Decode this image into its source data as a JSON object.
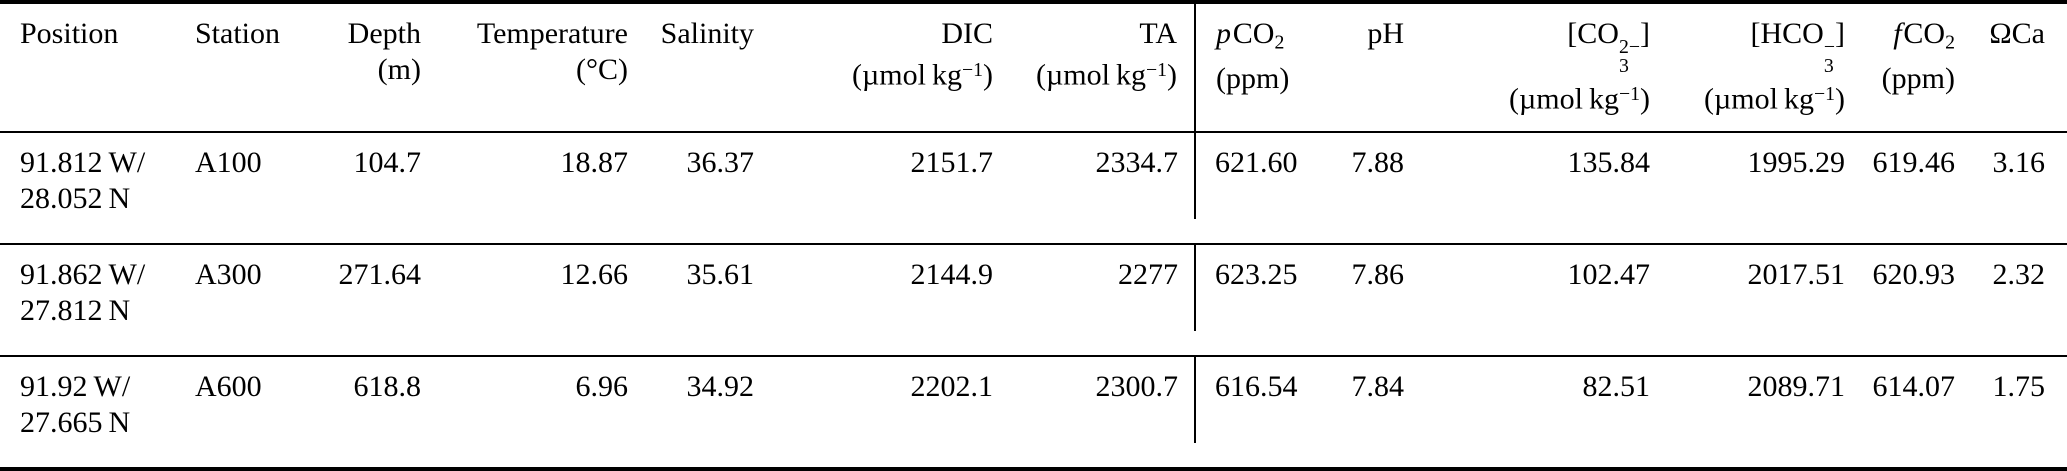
{
  "colors": {
    "background": "#ffffff",
    "text": "#000000",
    "rule": "#000000"
  },
  "table": {
    "columns": [
      {
        "id": "position",
        "header_line1": [
          {
            "t": "t",
            "v": "Position"
          }
        ],
        "header_line2": []
      },
      {
        "id": "station",
        "header_line1": [
          {
            "t": "t",
            "v": "Station"
          }
        ],
        "header_line2": []
      },
      {
        "id": "depth",
        "header_line1": [
          {
            "t": "t",
            "v": "Depth"
          }
        ],
        "header_line2": [
          {
            "t": "t",
            "v": "(m)"
          }
        ]
      },
      {
        "id": "temperature",
        "header_line1": [
          {
            "t": "t",
            "v": "Temperature"
          }
        ],
        "header_line2": [
          {
            "t": "t",
            "v": "(°C)"
          }
        ]
      },
      {
        "id": "salinity",
        "header_line1": [
          {
            "t": "t",
            "v": "Salinity"
          }
        ],
        "header_line2": []
      },
      {
        "id": "dic",
        "header_line1": [
          {
            "t": "t",
            "v": "DIC"
          }
        ],
        "header_line2": [
          {
            "t": "t",
            "v": "(µmol kg"
          },
          {
            "t": "sup",
            "v": "−1"
          },
          {
            "t": "t",
            "v": ")"
          }
        ]
      },
      {
        "id": "ta",
        "header_line1": [
          {
            "t": "t",
            "v": "TA"
          }
        ],
        "header_line2": [
          {
            "t": "t",
            "v": "(µmol kg"
          },
          {
            "t": "sup",
            "v": "−1"
          },
          {
            "t": "t",
            "v": ")"
          }
        ]
      },
      {
        "id": "pco2",
        "header_line1": [
          {
            "t": "i",
            "v": "p"
          },
          {
            "t": "t",
            "v": "CO"
          },
          {
            "t": "sub",
            "v": "2"
          }
        ],
        "header_line2": [
          {
            "t": "t",
            "v": "(ppm)"
          }
        ],
        "vline_before": true
      },
      {
        "id": "ph",
        "header_line1": [
          {
            "t": "t",
            "v": "pH"
          }
        ],
        "header_line2": []
      },
      {
        "id": "co3",
        "header_line1": [
          {
            "t": "t",
            "v": "[CO"
          },
          {
            "t": "ss",
            "sup": "2−",
            "sub": "3"
          },
          {
            "t": "t",
            "v": "]"
          }
        ],
        "header_line2": [
          {
            "t": "t",
            "v": "(µmol kg"
          },
          {
            "t": "sup",
            "v": "−1"
          },
          {
            "t": "t",
            "v": ")"
          }
        ]
      },
      {
        "id": "hco3",
        "header_line1": [
          {
            "t": "t",
            "v": "[HCO"
          },
          {
            "t": "ss",
            "sup": "−",
            "sub": "3"
          },
          {
            "t": "t",
            "v": "]"
          }
        ],
        "header_line2": [
          {
            "t": "t",
            "v": "(µmol kg"
          },
          {
            "t": "sup",
            "v": "−1"
          },
          {
            "t": "t",
            "v": ")"
          }
        ]
      },
      {
        "id": "fco2",
        "header_line1": [
          {
            "t": "i",
            "v": "f"
          },
          {
            "t": "t",
            "v": "CO"
          },
          {
            "t": "sub",
            "v": "2"
          }
        ],
        "header_line2": [
          {
            "t": "t",
            "v": "(ppm)"
          }
        ]
      },
      {
        "id": "omega_ca",
        "header_line1": [
          {
            "t": "t",
            "v": "ΩCa"
          }
        ],
        "header_line2": []
      }
    ],
    "rows": [
      {
        "cells": [
          "91.812 W/\n28.052 N",
          "A100",
          "104.7",
          "18.87",
          "36.37",
          "2151.7",
          "2334.7",
          "621.60",
          "7.88",
          "135.84",
          "1995.29",
          "619.46",
          "3.16"
        ]
      },
      {
        "cells": [
          "91.862 W/\n27.812 N",
          "A300",
          "271.64",
          "12.66",
          "35.61",
          "2144.9",
          "2277",
          "623.25",
          "7.86",
          "102.47",
          "2017.51",
          "620.93",
          "2.32"
        ]
      },
      {
        "cells": [
          "91.92 W/\n27.665 N",
          "A600",
          "618.8",
          "6.96",
          "34.92",
          "2202.1",
          "2300.7",
          "616.54",
          "7.84",
          "82.51",
          "2089.71",
          "614.07",
          "1.75"
        ]
      }
    ]
  }
}
